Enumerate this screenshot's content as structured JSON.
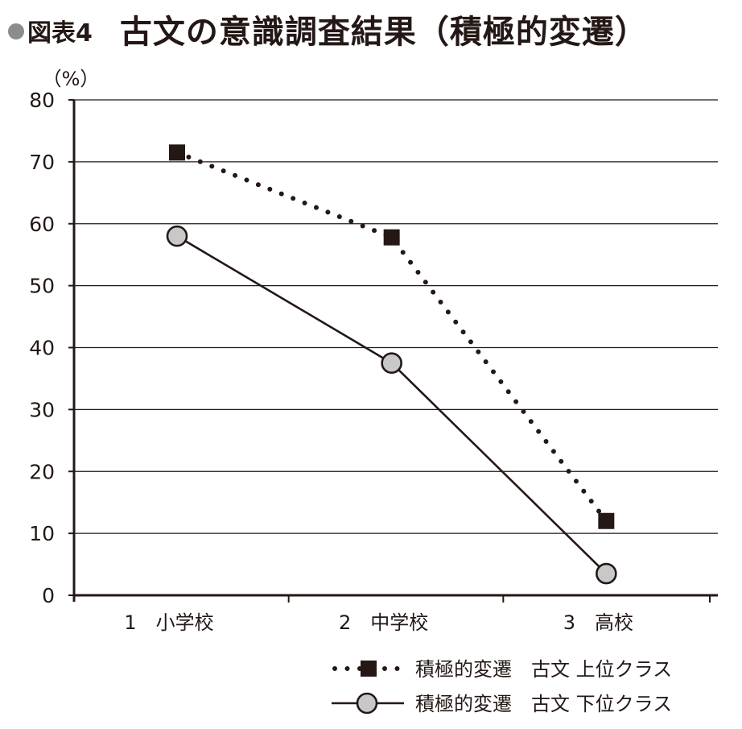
{
  "header": {
    "figure_label": "図表4",
    "title": "古文の意識調査結果（積極的変遷）"
  },
  "chart_data": {
    "type": "line",
    "title": "古文の意識調査結果（積極的変遷）",
    "unit_label": "（%）",
    "xlabel": "",
    "ylabel": "（%）",
    "categories": [
      "1　小学校",
      "2　中学校",
      "3　高校"
    ],
    "ylim": [
      0,
      80
    ],
    "yticks": [
      0,
      10,
      20,
      30,
      40,
      50,
      60,
      70,
      80
    ],
    "grid": true,
    "legend_position": "bottom-right",
    "series": [
      {
        "name": "積極的変遷　古文 上位クラス",
        "values": [
          71.5,
          57.8,
          12.0
        ],
        "line_style": "dotted",
        "marker": "square",
        "color": "#231815",
        "marker_fill": "#231815"
      },
      {
        "name": "積極的変遷　古文 下位クラス",
        "values": [
          58.0,
          37.5,
          3.5
        ],
        "line_style": "solid",
        "marker": "circle",
        "color": "#231815",
        "marker_fill": "#c8c8c8"
      }
    ]
  }
}
